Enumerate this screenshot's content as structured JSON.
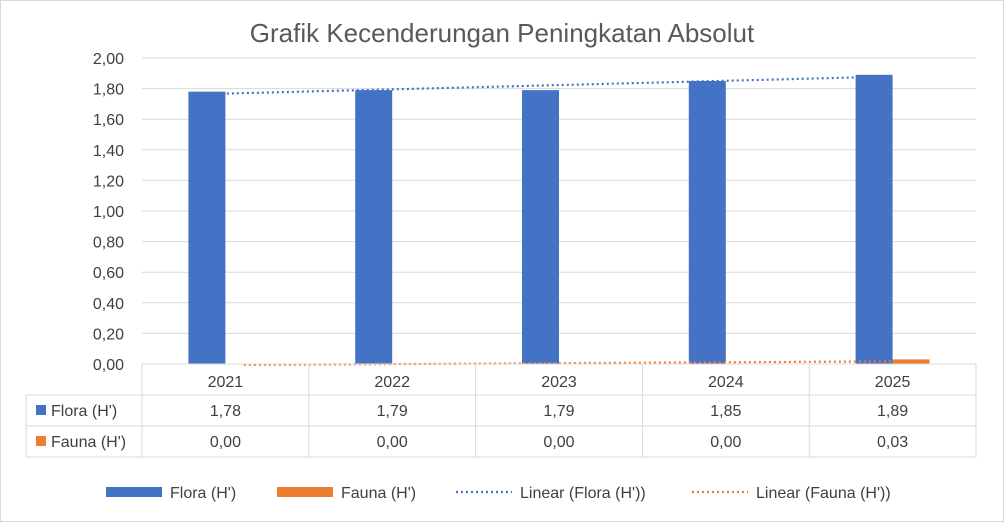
{
  "chart_data": {
    "type": "bar",
    "title": "Grafik Kecenderungan Peningkatan Absolut",
    "categories": [
      "2021",
      "2022",
      "2023",
      "2024",
      "2025"
    ],
    "series": [
      {
        "name": "Flora (H')",
        "values": [
          1.78,
          1.79,
          1.79,
          1.85,
          1.89
        ],
        "labels": [
          "1,78",
          "1,79",
          "1,79",
          "1,85",
          "1,89"
        ],
        "color": "#4472C4"
      },
      {
        "name": "Fauna (H')",
        "values": [
          0.0,
          0.0,
          0.0,
          0.0,
          0.03
        ],
        "labels": [
          "0,00",
          "0,00",
          "0,00",
          "0,00",
          "0,03"
        ],
        "color": "#ED7D31"
      }
    ],
    "trendlines": [
      {
        "name": "Linear (Flora (H'))",
        "type": "linear",
        "series": "Flora (H')",
        "color": "#4472C4"
      },
      {
        "name": "Linear (Fauna (H'))",
        "type": "linear",
        "series": "Fauna (H')",
        "color": "#ED7D31"
      }
    ],
    "ylim": [
      0,
      2.0
    ],
    "yticks": [
      "0,00",
      "0,20",
      "0,40",
      "0,60",
      "0,80",
      "1,00",
      "1,20",
      "1,40",
      "1,60",
      "1,80",
      "2,00"
    ],
    "grid": true,
    "data_table": true,
    "legend_position": "bottom",
    "grid_color": "#D9D9D9",
    "text_color": "#404040",
    "border_color": "#D9D9D9"
  }
}
